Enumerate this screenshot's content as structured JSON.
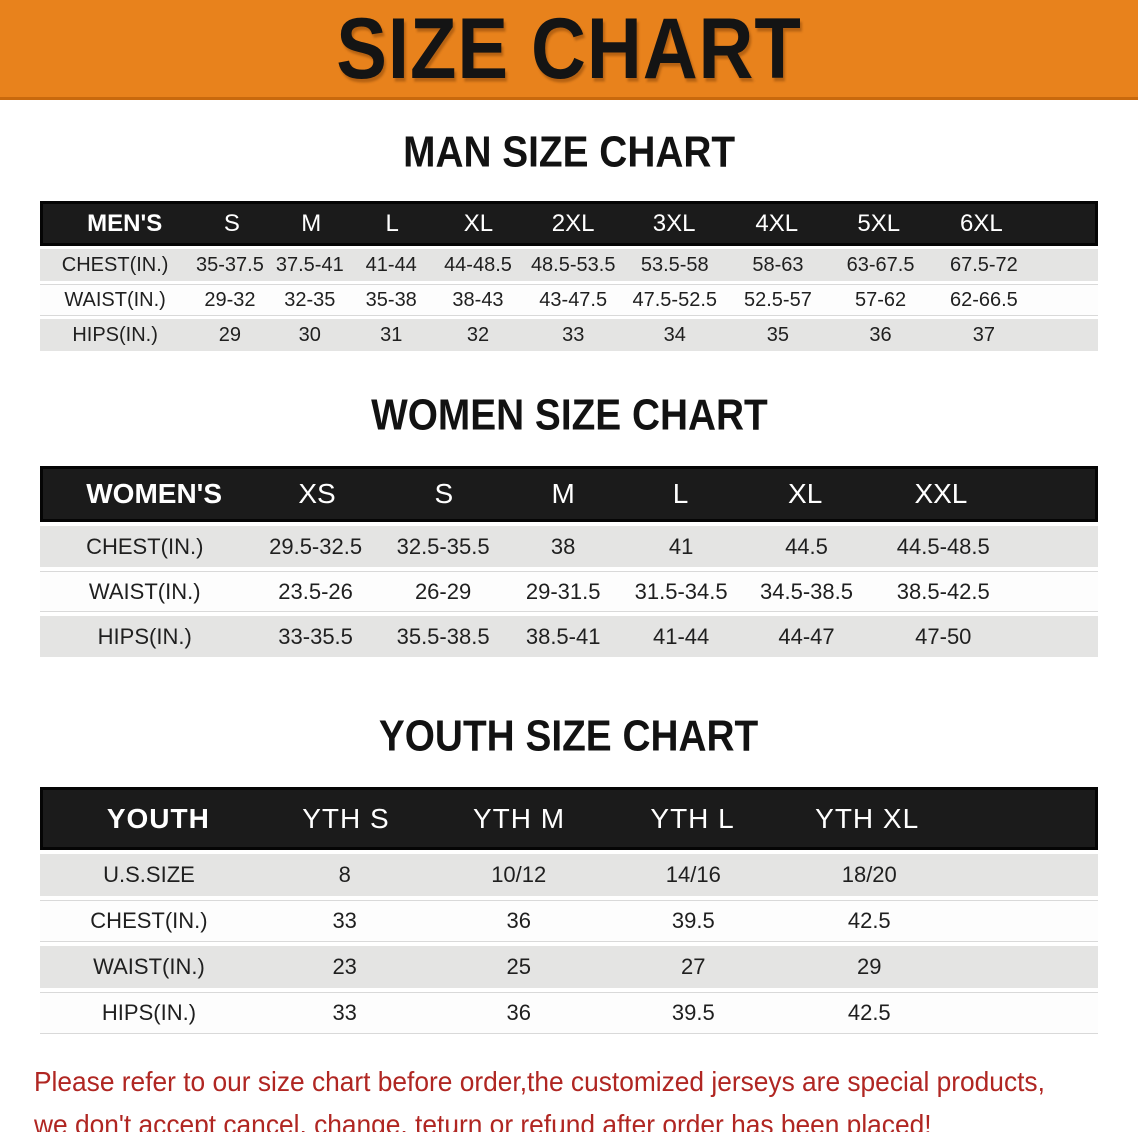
{
  "banner": {
    "title": "SIZE CHART"
  },
  "colors": {
    "banner_bg": "#e8821c",
    "table_header_bg": "#1b1b1b",
    "row_alt_bg": "#e4e4e3",
    "disclaimer_red": "#b02622"
  },
  "man": {
    "heading": "MAN SIZE CHART",
    "label": "MEN'S",
    "sizes": [
      "S",
      "M",
      "L",
      "XL",
      "2XL",
      "3XL",
      "4XL",
      "5XL",
      "6XL"
    ],
    "rows": [
      {
        "label": "CHEST(IN.)",
        "values": [
          "35-37.5",
          "37.5-41",
          "41-44",
          "44-48.5",
          "48.5-53.5",
          "53.5-58",
          "58-63",
          "63-67.5",
          "67.5-72"
        ]
      },
      {
        "label": "WAIST(IN.)",
        "values": [
          "29-32",
          "32-35",
          "35-38",
          "38-43",
          "43-47.5",
          "47.5-52.5",
          "52.5-57",
          "57-62",
          "62-66.5"
        ]
      },
      {
        "label": "HIPS(IN.)",
        "values": [
          "29",
          "30",
          "31",
          "32",
          "33",
          "34",
          "35",
          "36",
          "37"
        ]
      }
    ]
  },
  "women": {
    "heading": "WOMEN SIZE CHART",
    "label": "WOMEN'S",
    "sizes": [
      "XS",
      "S",
      "M",
      "L",
      "XL",
      "XXL"
    ],
    "rows": [
      {
        "label": "CHEST(IN.)",
        "values": [
          "29.5-32.5",
          "32.5-35.5",
          "38",
          "41",
          "44.5",
          "44.5-48.5"
        ]
      },
      {
        "label": "WAIST(IN.)",
        "values": [
          "23.5-26",
          "26-29",
          "29-31.5",
          "31.5-34.5",
          "34.5-38.5",
          "38.5-42.5"
        ]
      },
      {
        "label": "HIPS(IN.)",
        "values": [
          "33-35.5",
          "35.5-38.5",
          "38.5-41",
          "41-44",
          "44-47",
          "47-50"
        ]
      }
    ]
  },
  "youth": {
    "heading": "YOUTH SIZE CHART",
    "label": "YOUTH",
    "sizes": [
      "YTH S",
      "YTH M",
      "YTH L",
      "YTH XL"
    ],
    "rows": [
      {
        "label": "U.S.SIZE",
        "values": [
          "8",
          "10/12",
          "14/16",
          "18/20"
        ]
      },
      {
        "label": "CHEST(IN.)",
        "values": [
          "33",
          "36",
          "39.5",
          "42.5"
        ]
      },
      {
        "label": "WAIST(IN.)",
        "values": [
          "23",
          "25",
          "27",
          "29"
        ]
      },
      {
        "label": "HIPS(IN.)",
        "values": [
          "33",
          "36",
          "39.5",
          "42.5"
        ]
      }
    ]
  },
  "disclaimer": {
    "line1": "Please refer to our size chart before order,the customized jerseys are special products,",
    "line2": "we don't accept cancel, change, teturn or refund after order has been placed!"
  }
}
